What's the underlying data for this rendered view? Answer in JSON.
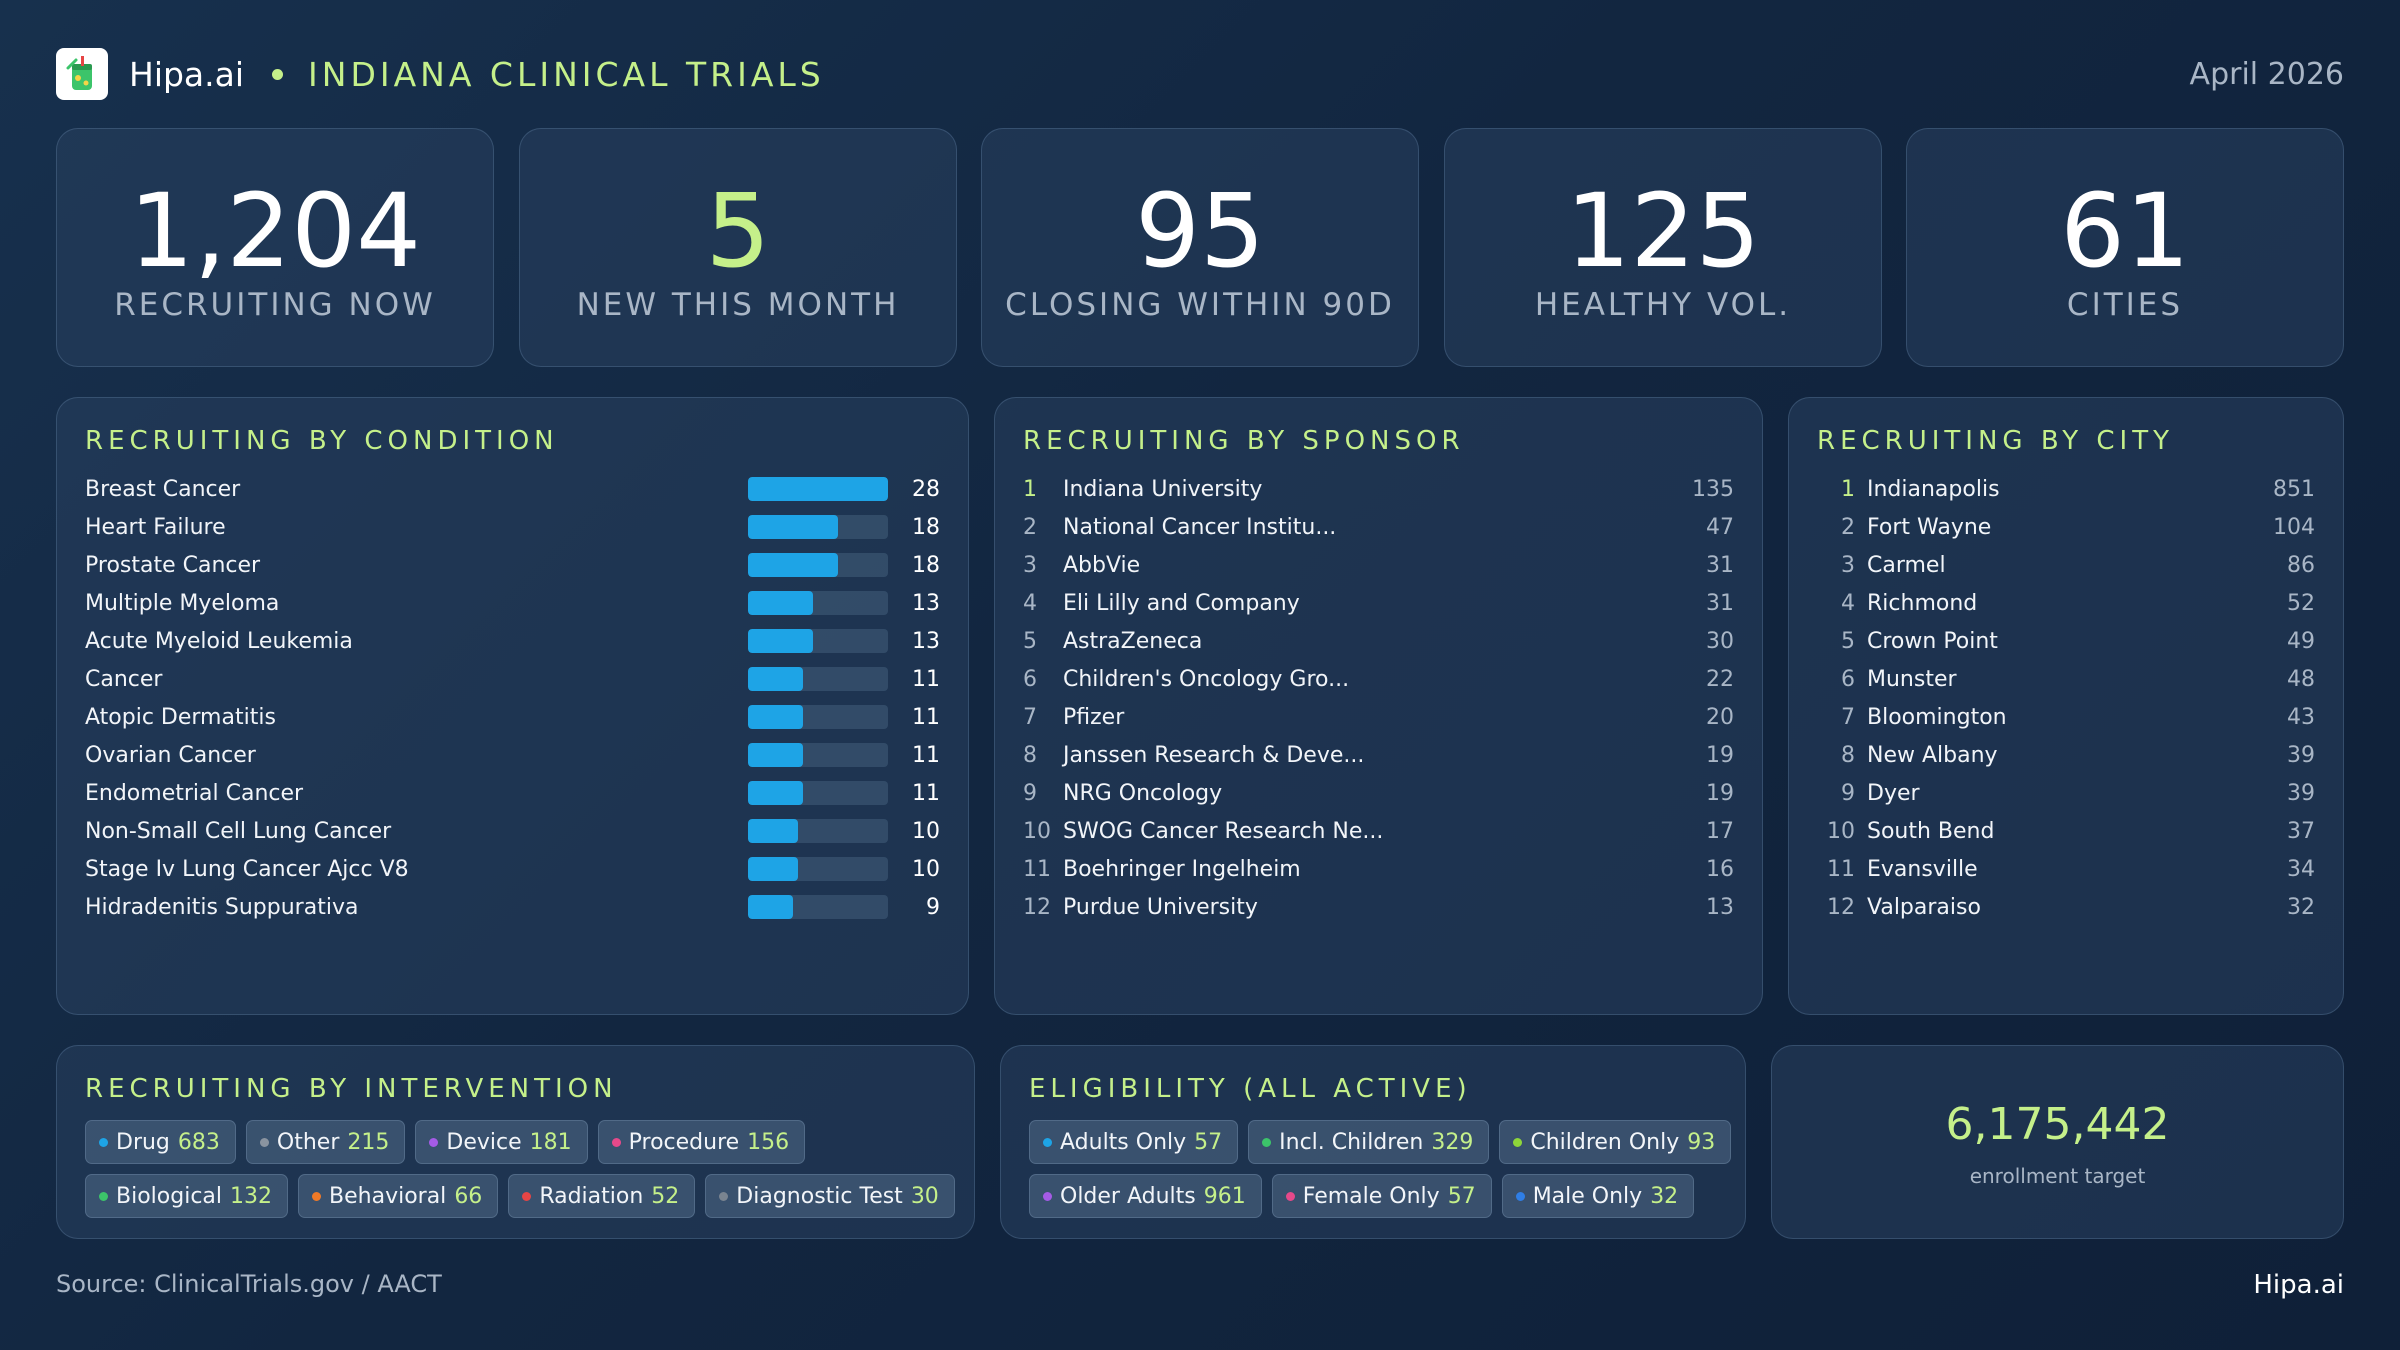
{
  "header": {
    "brand": "Hipa.ai",
    "title": "INDIANA CLINICAL TRIALS",
    "date": "April 2026",
    "logo_icon": "cup-icon"
  },
  "kpis": [
    {
      "value": "1,204",
      "label": "RECRUITING NOW",
      "accent": false
    },
    {
      "value": "5",
      "label": "NEW THIS MONTH",
      "accent": true
    },
    {
      "value": "95",
      "label": "CLOSING WITHIN 90D",
      "accent": false
    },
    {
      "value": "125",
      "label": "HEALTHY VOL.",
      "accent": false
    },
    {
      "value": "61",
      "label": "CITIES",
      "accent": false
    }
  ],
  "conditions": {
    "title": "RECRUITING BY CONDITION",
    "max": 28,
    "bar_color": "#1ea4e6",
    "items": [
      {
        "name": "Breast Cancer",
        "count": 28
      },
      {
        "name": "Heart Failure",
        "count": 18
      },
      {
        "name": "Prostate Cancer",
        "count": 18
      },
      {
        "name": "Multiple Myeloma",
        "count": 13
      },
      {
        "name": "Acute Myeloid Leukemia",
        "count": 13
      },
      {
        "name": "Cancer",
        "count": 11
      },
      {
        "name": "Atopic Dermatitis",
        "count": 11
      },
      {
        "name": "Ovarian Cancer",
        "count": 11
      },
      {
        "name": "Endometrial Cancer",
        "count": 11
      },
      {
        "name": "Non-Small Cell Lung Cancer",
        "count": 10
      },
      {
        "name": "Stage Iv Lung Cancer Ajcc V8",
        "count": 10
      },
      {
        "name": "Hidradenitis Suppurativa",
        "count": 9
      }
    ]
  },
  "sponsors": {
    "title": "RECRUITING BY SPONSOR",
    "items": [
      {
        "rank": "1",
        "name": "Indiana University",
        "count": "135"
      },
      {
        "rank": "2",
        "name": "National Cancer Institu...",
        "count": "47"
      },
      {
        "rank": "3",
        "name": "AbbVie",
        "count": "31"
      },
      {
        "rank": "4",
        "name": "Eli Lilly and Company",
        "count": "31"
      },
      {
        "rank": "5",
        "name": "AstraZeneca",
        "count": "30"
      },
      {
        "rank": "6",
        "name": "Children's Oncology Gro...",
        "count": "22"
      },
      {
        "rank": "7",
        "name": "Pfizer",
        "count": "20"
      },
      {
        "rank": "8",
        "name": "Janssen Research & Deve...",
        "count": "19"
      },
      {
        "rank": "9",
        "name": "NRG Oncology",
        "count": "19"
      },
      {
        "rank": "10",
        "name": "SWOG Cancer Research Ne...",
        "count": "17"
      },
      {
        "rank": "11",
        "name": "Boehringer Ingelheim",
        "count": "16"
      },
      {
        "rank": "12",
        "name": "Purdue University",
        "count": "13"
      }
    ]
  },
  "cities": {
    "title": "RECRUITING BY CITY",
    "items": [
      {
        "rank": "1",
        "name": "Indianapolis",
        "count": "851"
      },
      {
        "rank": "2",
        "name": "Fort Wayne",
        "count": "104"
      },
      {
        "rank": "3",
        "name": "Carmel",
        "count": "86"
      },
      {
        "rank": "4",
        "name": "Richmond",
        "count": "52"
      },
      {
        "rank": "5",
        "name": "Crown Point",
        "count": "49"
      },
      {
        "rank": "6",
        "name": "Munster",
        "count": "48"
      },
      {
        "rank": "7",
        "name": "Bloomington",
        "count": "43"
      },
      {
        "rank": "8",
        "name": "New Albany",
        "count": "39"
      },
      {
        "rank": "9",
        "name": "Dyer",
        "count": "39"
      },
      {
        "rank": "10",
        "name": "South Bend",
        "count": "37"
      },
      {
        "rank": "11",
        "name": "Evansville",
        "count": "34"
      },
      {
        "rank": "12",
        "name": "Valparaiso",
        "count": "32"
      }
    ]
  },
  "interventions": {
    "title": "RECRUITING BY INTERVENTION",
    "rows": [
      [
        {
          "label": "Drug",
          "count": "683",
          "color": "#1ea4e6"
        },
        {
          "label": "Other",
          "count": "215",
          "color": "#8a94a0"
        },
        {
          "label": "Device",
          "count": "181",
          "color": "#a55be6"
        },
        {
          "label": "Procedure",
          "count": "156",
          "color": "#e6498a"
        }
      ],
      [
        {
          "label": "Biological",
          "count": "132",
          "color": "#3cc46a"
        },
        {
          "label": "Behavioral",
          "count": "66",
          "color": "#f07a28"
        },
        {
          "label": "Radiation",
          "count": "52",
          "color": "#e64545"
        },
        {
          "label": "Diagnostic Test",
          "count": "30",
          "color": "#7a8490"
        }
      ]
    ]
  },
  "eligibility": {
    "title": "ELIGIBILITY (ALL ACTIVE)",
    "rows": [
      [
        {
          "label": "Adults Only",
          "count": "57",
          "color": "#1ea4e6"
        },
        {
          "label": "Incl. Children",
          "count": "329",
          "color": "#3cc46a"
        },
        {
          "label": "Children Only",
          "count": "93",
          "color": "#8ed63a"
        }
      ],
      [
        {
          "label": "Older Adults",
          "count": "961",
          "color": "#a55be6"
        },
        {
          "label": "Female Only",
          "count": "57",
          "color": "#e6498a"
        },
        {
          "label": "Male Only",
          "count": "32",
          "color": "#2f7ee6"
        }
      ]
    ]
  },
  "enrollment": {
    "value": "6,175,442",
    "label": "enrollment target"
  },
  "footer": {
    "source": "Source: ClinicalTrials.gov / AACT",
    "brand": "Hipa.ai"
  },
  "colors": {
    "accent": "#c5f08a",
    "muted": "#a9b6c6",
    "bar": "#1ea4e6"
  }
}
